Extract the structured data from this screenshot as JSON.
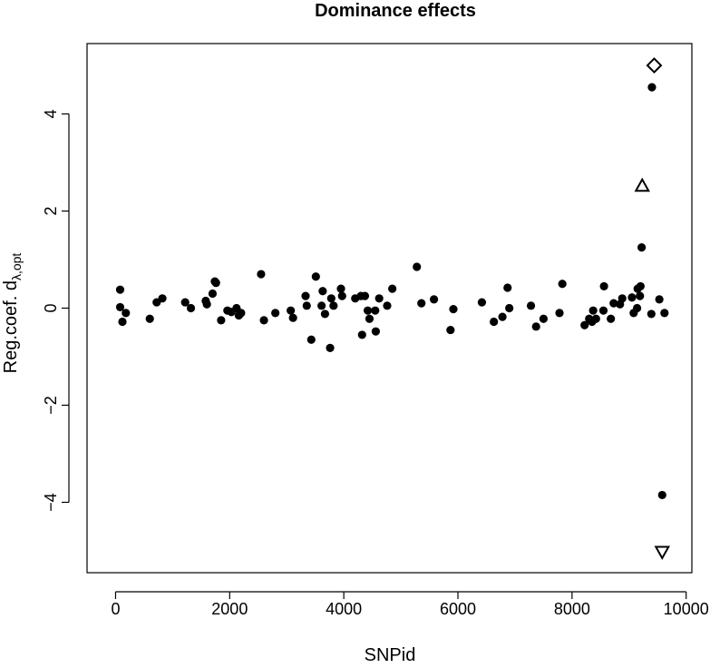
{
  "chart_data": {
    "type": "scatter",
    "title": "Dominance effects",
    "xlabel": "SNPid",
    "ylabel": {
      "main": "Reg.coef. d",
      "subscript": "λ,opt"
    },
    "xlim": [
      -500,
      10100
    ],
    "ylim": [
      -5.45,
      5.45
    ],
    "x_ticks": [
      0,
      2000,
      4000,
      6000,
      8000,
      10000
    ],
    "y_ticks": [
      -4,
      -2,
      0,
      2,
      4
    ],
    "x_tick_labels": [
      "0",
      "2000",
      "4000",
      "6000",
      "8000",
      "10000"
    ],
    "y_tick_labels": [
      "−4",
      "−2",
      "0",
      "2",
      "4"
    ],
    "grid": false,
    "legend": "none",
    "series": [
      {
        "marker": "filled-circle",
        "points": [
          [
            80,
            0.38
          ],
          [
            80,
            0.02
          ],
          [
            120,
            -0.28
          ],
          [
            180,
            -0.1
          ],
          [
            600,
            -0.22
          ],
          [
            720,
            0.12
          ],
          [
            820,
            0.2
          ],
          [
            1220,
            0.12
          ],
          [
            1320,
            0.0
          ],
          [
            1580,
            0.15
          ],
          [
            1600,
            0.08
          ],
          [
            1700,
            0.3
          ],
          [
            1740,
            0.55
          ],
          [
            1760,
            0.52
          ],
          [
            1850,
            -0.25
          ],
          [
            1960,
            -0.05
          ],
          [
            2030,
            -0.08
          ],
          [
            2120,
            0.0
          ],
          [
            2160,
            -0.15
          ],
          [
            2200,
            -0.1
          ],
          [
            2550,
            0.7
          ],
          [
            2600,
            -0.25
          ],
          [
            2800,
            -0.1
          ],
          [
            3070,
            -0.05
          ],
          [
            3110,
            -0.2
          ],
          [
            3330,
            0.25
          ],
          [
            3350,
            0.05
          ],
          [
            3430,
            -0.65
          ],
          [
            3510,
            0.65
          ],
          [
            3610,
            0.05
          ],
          [
            3630,
            0.35
          ],
          [
            3670,
            -0.12
          ],
          [
            3760,
            -0.82
          ],
          [
            3780,
            0.2
          ],
          [
            3820,
            0.05
          ],
          [
            3950,
            0.4
          ],
          [
            3970,
            0.25
          ],
          [
            4200,
            0.2
          ],
          [
            4300,
            0.25
          ],
          [
            4320,
            -0.55
          ],
          [
            4370,
            0.25
          ],
          [
            4420,
            -0.05
          ],
          [
            4450,
            -0.22
          ],
          [
            4550,
            -0.05
          ],
          [
            4560,
            -0.48
          ],
          [
            4620,
            0.2
          ],
          [
            4760,
            0.05
          ],
          [
            4850,
            0.4
          ],
          [
            5280,
            0.85
          ],
          [
            5360,
            0.1
          ],
          [
            5580,
            0.18
          ],
          [
            5870,
            -0.45
          ],
          [
            5920,
            -0.02
          ],
          [
            6420,
            0.12
          ],
          [
            6630,
            -0.28
          ],
          [
            6780,
            -0.18
          ],
          [
            6870,
            0.42
          ],
          [
            6900,
            0.0
          ],
          [
            7280,
            0.05
          ],
          [
            7370,
            -0.38
          ],
          [
            7500,
            -0.22
          ],
          [
            7780,
            -0.1
          ],
          [
            7830,
            0.5
          ],
          [
            8220,
            -0.35
          ],
          [
            8300,
            -0.22
          ],
          [
            8350,
            -0.28
          ],
          [
            8370,
            -0.05
          ],
          [
            8420,
            -0.22
          ],
          [
            8550,
            -0.05
          ],
          [
            8560,
            0.45
          ],
          [
            8680,
            -0.22
          ],
          [
            8730,
            0.1
          ],
          [
            8840,
            0.08
          ],
          [
            8880,
            0.2
          ],
          [
            9050,
            0.22
          ],
          [
            9080,
            -0.1
          ],
          [
            9140,
            0.0
          ],
          [
            9150,
            0.4
          ],
          [
            9190,
            0.25
          ],
          [
            9200,
            0.45
          ],
          [
            9220,
            1.25
          ],
          [
            9390,
            -0.12
          ],
          [
            9400,
            4.55
          ],
          [
            9530,
            0.18
          ],
          [
            9620,
            -0.1
          ],
          [
            9580,
            -3.85
          ]
        ]
      },
      {
        "marker": "open-diamond",
        "points": [
          [
            9440,
            5.0
          ]
        ]
      },
      {
        "marker": "open-triangle-up",
        "points": [
          [
            9230,
            2.52
          ]
        ]
      },
      {
        "marker": "open-triangle-down",
        "points": [
          [
            9580,
            -5.02
          ]
        ]
      }
    ]
  }
}
